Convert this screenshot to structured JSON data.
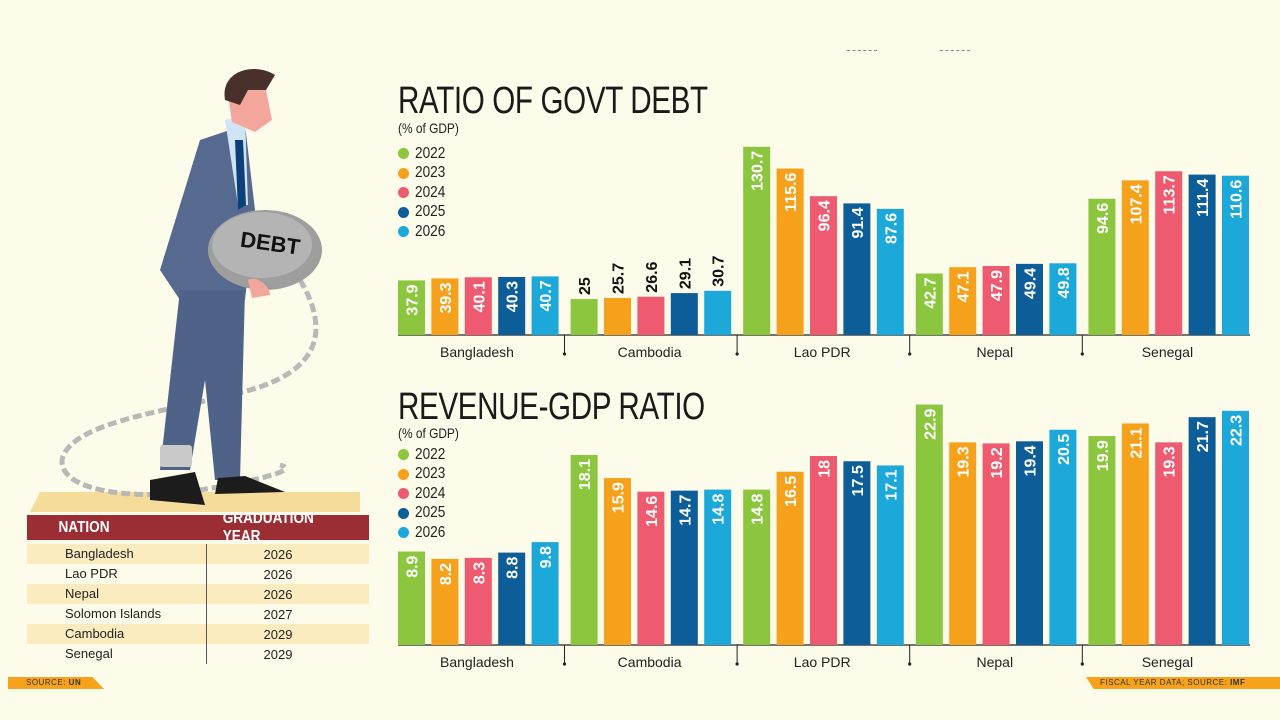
{
  "illustration": {
    "ball_label": "DEBT"
  },
  "table": {
    "headers": [
      "NATION",
      "GRADUATION YEAR"
    ],
    "rows": [
      [
        "Bangladesh",
        "2026"
      ],
      [
        "Lao PDR",
        "2026"
      ],
      [
        "Nepal",
        "2026"
      ],
      [
        "Solomon Islands",
        "2027"
      ],
      [
        "Cambodia",
        "2029"
      ],
      [
        "Senegal",
        "2029"
      ]
    ]
  },
  "sources": {
    "left_prefix": "SOURCE: ",
    "left_name": "UN",
    "right_prefix": "FISCAL YEAR DATA; SOURCE: ",
    "right_name": "IMF"
  },
  "colors": {
    "2022": "#8cc63e",
    "2023": "#f6a11c",
    "2024": "#ee5a6f",
    "2025": "#0d5d99",
    "2026": "#1ca8d8"
  },
  "chart_data": [
    {
      "type": "bar",
      "title": "RATIO OF GOVT DEBT",
      "subtitle": "(% of GDP)",
      "categories": [
        "Bangladesh",
        "Cambodia",
        "Lao PDR",
        "Nepal",
        "Senegal"
      ],
      "legend": "top-left",
      "grid": false,
      "series": [
        {
          "name": "2022",
          "values": [
            37.9,
            25,
            130.7,
            42.7,
            94.6
          ]
        },
        {
          "name": "2023",
          "values": [
            39.3,
            25.7,
            115.6,
            47.1,
            107.4
          ]
        },
        {
          "name": "2024",
          "values": [
            40.1,
            26.6,
            96.4,
            47.9,
            113.7
          ]
        },
        {
          "name": "2025",
          "values": [
            40.3,
            29.1,
            91.4,
            49.4,
            111.4
          ]
        },
        {
          "name": "2026",
          "values": [
            40.7,
            30.7,
            87.6,
            49.8,
            110.6
          ]
        }
      ]
    },
    {
      "type": "bar",
      "title": "REVENUE-GDP RATIO",
      "subtitle": "(% of GDP)",
      "categories": [
        "Bangladesh",
        "Cambodia",
        "Lao PDR",
        "Nepal",
        "Senegal"
      ],
      "legend": "top-left",
      "grid": false,
      "series": [
        {
          "name": "2022",
          "values": [
            8.9,
            18.1,
            14.8,
            22.9,
            19.9
          ]
        },
        {
          "name": "2023",
          "values": [
            8.2,
            15.9,
            16.5,
            19.3,
            21.1
          ]
        },
        {
          "name": "2024",
          "values": [
            8.3,
            14.6,
            18,
            19.2,
            19.3
          ]
        },
        {
          "name": "2025",
          "values": [
            8.8,
            14.7,
            17.5,
            19.4,
            21.7
          ]
        },
        {
          "name": "2026",
          "values": [
            9.8,
            14.8,
            17.1,
            20.5,
            22.3
          ]
        }
      ]
    }
  ]
}
